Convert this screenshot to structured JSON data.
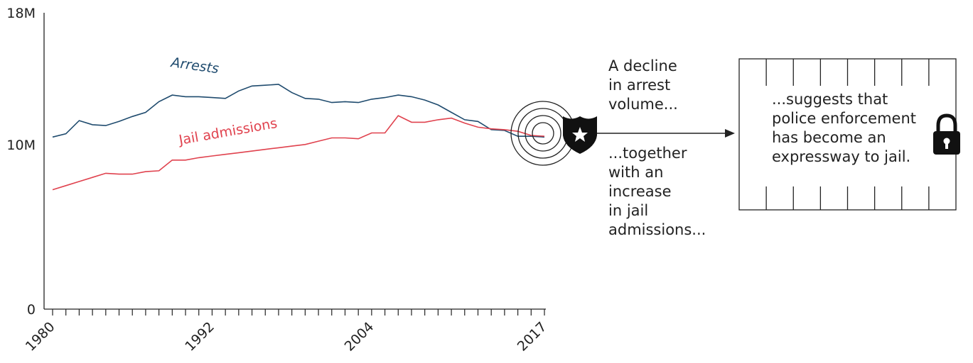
{
  "chart_data": {
    "type": "line",
    "x": [
      1980,
      1981,
      1982,
      1983,
      1984,
      1985,
      1986,
      1987,
      1988,
      1989,
      1990,
      1991,
      1992,
      1993,
      1994,
      1995,
      1996,
      1997,
      1998,
      1999,
      2000,
      2001,
      2002,
      2003,
      2004,
      2005,
      2006,
      2007,
      2008,
      2009,
      2010,
      2011,
      2012,
      2013,
      2014,
      2015,
      2016,
      2017
    ],
    "series": [
      {
        "name": "Arrests",
        "color": "#1f4b6e",
        "values": [
          10.45,
          10.65,
          11.45,
          11.2,
          11.15,
          11.4,
          11.7,
          11.95,
          12.6,
          13.0,
          12.9,
          12.9,
          12.85,
          12.8,
          13.25,
          13.55,
          13.6,
          13.65,
          13.15,
          12.8,
          12.75,
          12.55,
          12.6,
          12.55,
          12.75,
          12.85,
          13.0,
          12.9,
          12.7,
          12.4,
          11.95,
          11.5,
          11.4,
          10.9,
          10.85,
          10.5,
          10.5,
          10.45
        ]
      },
      {
        "name": "Jail admissions",
        "color": "#e0424e",
        "values": [
          7.25,
          7.5,
          7.75,
          8.0,
          8.25,
          8.2,
          8.2,
          8.35,
          8.4,
          9.05,
          9.05,
          9.2,
          9.3,
          9.4,
          9.5,
          9.6,
          9.7,
          9.8,
          9.9,
          10.0,
          10.2,
          10.4,
          10.4,
          10.35,
          10.7,
          10.7,
          11.75,
          11.35,
          11.35,
          11.5,
          11.6,
          11.3,
          11.05,
          10.95,
          10.9,
          10.8,
          10.55,
          10.5
        ]
      }
    ],
    "y_ticks": [
      {
        "value": 0,
        "label": "0"
      },
      {
        "value": 10,
        "label": "10M"
      },
      {
        "value": 18,
        "label": "18M"
      }
    ],
    "x_tick_labels": [
      "1980",
      "1992",
      "2004",
      "2017"
    ],
    "ylim": [
      0,
      18
    ],
    "xlim": [
      1980,
      2017
    ],
    "annotations": {
      "decline": "A decline\nin arrest\nvolume...",
      "increase": "...together\nwith an\nincrease\nin jail\nadmissions...",
      "conclusion": "...suggests that\npolice enforcement\nhas become an\nexpressway to jail."
    },
    "icons": [
      "target-rings-icon",
      "police-badge-icon",
      "arrow-icon",
      "padlock-icon"
    ]
  }
}
